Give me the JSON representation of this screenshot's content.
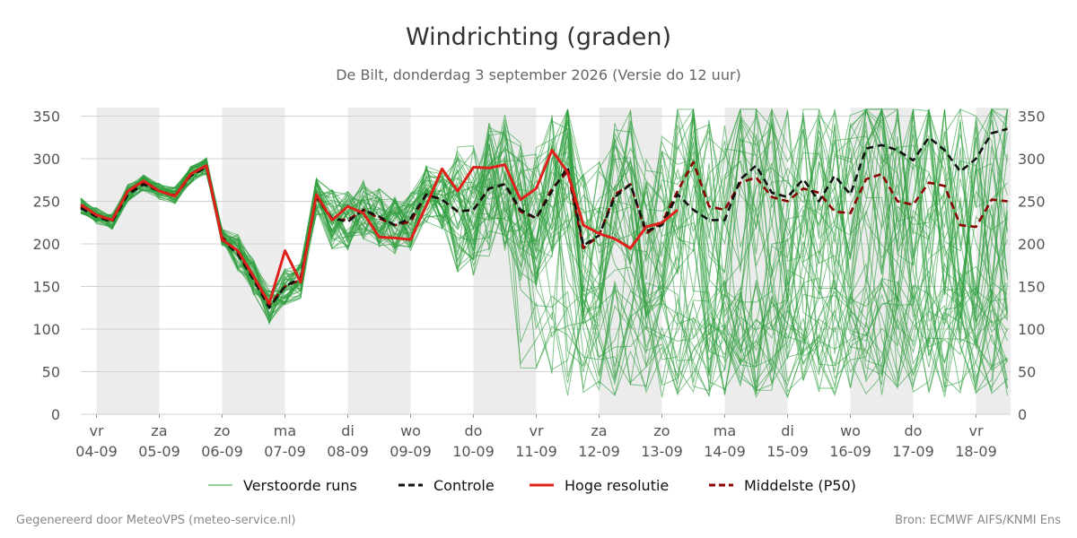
{
  "chart_data": {
    "type": "line",
    "title": "Windrichting (graden)",
    "subtitle": "De Bilt, donderdag  3 september 2026 (Versie do 12 uur)",
    "ylim": [
      0,
      360
    ],
    "yticks": [
      0,
      50,
      100,
      150,
      200,
      250,
      300,
      350
    ],
    "grid": true,
    "x_range_days": [
      3.75,
      18.55
    ],
    "day_ticks": [
      {
        "day": 4,
        "weekday": "vr",
        "date": "04-09"
      },
      {
        "day": 5,
        "weekday": "za",
        "date": "05-09"
      },
      {
        "day": 6,
        "weekday": "zo",
        "date": "06-09"
      },
      {
        "day": 7,
        "weekday": "ma",
        "date": "07-09"
      },
      {
        "day": 8,
        "weekday": "di",
        "date": "08-09"
      },
      {
        "day": 9,
        "weekday": "wo",
        "date": "09-09"
      },
      {
        "day": 10,
        "weekday": "do",
        "date": "10-09"
      },
      {
        "day": 11,
        "weekday": "vr",
        "date": "11-09"
      },
      {
        "day": 12,
        "weekday": "za",
        "date": "12-09"
      },
      {
        "day": 13,
        "weekday": "zo",
        "date": "13-09"
      },
      {
        "day": 14,
        "weekday": "ma",
        "date": "14-09"
      },
      {
        "day": 15,
        "weekday": "di",
        "date": "15-09"
      },
      {
        "day": 16,
        "weekday": "wo",
        "date": "16-09"
      },
      {
        "day": 17,
        "weekday": "do",
        "date": "17-09"
      },
      {
        "day": 18,
        "weekday": "vr",
        "date": "18-09"
      }
    ],
    "shaded_bands": [
      [
        4,
        5
      ],
      [
        6,
        7
      ],
      [
        8,
        9
      ],
      [
        10,
        11
      ],
      [
        12,
        13
      ],
      [
        14,
        15
      ],
      [
        16,
        17
      ],
      [
        18,
        18.55
      ]
    ],
    "legend_placement": "bottom",
    "legend": [
      {
        "label": "Verstoorde runs",
        "color": "#2e9e3e",
        "style": "thin"
      },
      {
        "label": "Controle",
        "color": "#111111",
        "style": "dashed"
      },
      {
        "label": "Hoge resolutie",
        "color": "#e0201b",
        "style": "solid"
      },
      {
        "label": "Middelste (P50)",
        "color": "#8b0000",
        "style": "dashed"
      }
    ],
    "series": [
      {
        "name": "Controle",
        "color": "#111111",
        "style": "dashed",
        "x": [
          3.75,
          4.0,
          4.25,
          4.5,
          4.75,
          5.0,
          5.25,
          5.5,
          5.75,
          6.0,
          6.25,
          6.5,
          6.75,
          7.0,
          7.25,
          7.5,
          7.75,
          8.0,
          8.25,
          8.5,
          8.75,
          9.0,
          9.25,
          9.5,
          9.75,
          10.0,
          10.25,
          10.5,
          10.75,
          11.0,
          11.25,
          11.5,
          11.75,
          12.0,
          12.25,
          12.5,
          12.75,
          13.0,
          13.25,
          13.5,
          13.75,
          14.0,
          14.25,
          14.5,
          14.75,
          15.0,
          15.25,
          15.5,
          15.75,
          16.0,
          16.25,
          16.5,
          16.75,
          17.0,
          17.25,
          17.5,
          17.75,
          18.0,
          18.25,
          18.5
        ],
        "values": [
          242,
          232,
          226,
          258,
          270,
          262,
          256,
          280,
          290,
          205,
          188,
          158,
          125,
          150,
          160,
          255,
          230,
          226,
          240,
          232,
          222,
          230,
          258,
          252,
          238,
          240,
          265,
          270,
          240,
          230,
          262,
          290,
          198,
          210,
          255,
          270,
          215,
          222,
          258,
          240,
          228,
          228,
          276,
          292,
          260,
          255,
          276,
          250,
          280,
          258,
          312,
          316,
          310,
          298,
          325,
          310,
          285,
          300,
          330,
          335
        ]
      },
      {
        "name": "Hoge resolutie",
        "color": "#e0201b",
        "style": "solid",
        "x": [
          3.75,
          4.0,
          4.25,
          4.5,
          4.75,
          5.0,
          5.25,
          5.5,
          5.75,
          6.0,
          6.25,
          6.5,
          6.75,
          7.0,
          7.25,
          7.5,
          7.75,
          8.0,
          8.25,
          8.5,
          8.75,
          9.0,
          9.25,
          9.5,
          9.75,
          10.0,
          10.25,
          10.5,
          10.75,
          11.0,
          11.25,
          11.5,
          11.75,
          12.0,
          12.25,
          12.5,
          12.75,
          13.0,
          13.25
        ],
        "values": [
          246,
          234,
          228,
          262,
          274,
          262,
          256,
          282,
          292,
          205,
          192,
          162,
          130,
          192,
          155,
          258,
          228,
          244,
          236,
          208,
          207,
          205,
          245,
          288,
          262,
          290,
          289,
          293,
          252,
          265,
          310,
          284,
          222,
          212,
          206,
          195,
          220,
          225,
          240
        ]
      },
      {
        "name": "Middelste (P50)",
        "color": "#8b0000",
        "style": "dashed",
        "x": [
          3.75,
          4.0,
          4.25,
          4.5,
          4.75,
          5.0,
          5.25,
          5.5,
          5.75,
          6.0,
          6.25,
          6.5,
          6.75,
          7.0,
          7.25,
          7.5,
          7.75,
          8.0,
          8.25,
          8.5,
          8.75,
          9.0,
          9.25,
          9.5,
          9.75,
          10.0,
          10.25,
          10.5,
          10.75,
          11.0,
          11.25,
          11.5,
          11.75,
          12.0,
          12.25,
          12.5,
          12.75,
          13.0,
          13.25,
          13.5,
          13.75,
          14.0,
          14.25,
          14.5,
          14.75,
          15.0,
          15.25,
          15.5,
          15.75,
          16.0,
          16.25,
          16.5,
          16.75,
          17.0,
          17.25,
          17.5,
          17.75,
          18.0,
          18.25,
          18.5
        ],
        "values": [
          244,
          233,
          227,
          260,
          272,
          262,
          257,
          281,
          291,
          208,
          190,
          160,
          128,
          150,
          158,
          255,
          229,
          228,
          240,
          230,
          222,
          226,
          258,
          252,
          238,
          240,
          265,
          270,
          238,
          230,
          265,
          285,
          195,
          210,
          258,
          270,
          212,
          225,
          262,
          296,
          244,
          240,
          272,
          278,
          255,
          250,
          265,
          260,
          238,
          236,
          276,
          282,
          250,
          246,
          272,
          268,
          222,
          220,
          252,
          250
        ]
      }
    ]
  },
  "footer": {
    "left": "Gegenereerd door MeteoVPS (meteo-service.nl)",
    "right": "Bron: ECMWF AIFS/KNMI Ens"
  }
}
